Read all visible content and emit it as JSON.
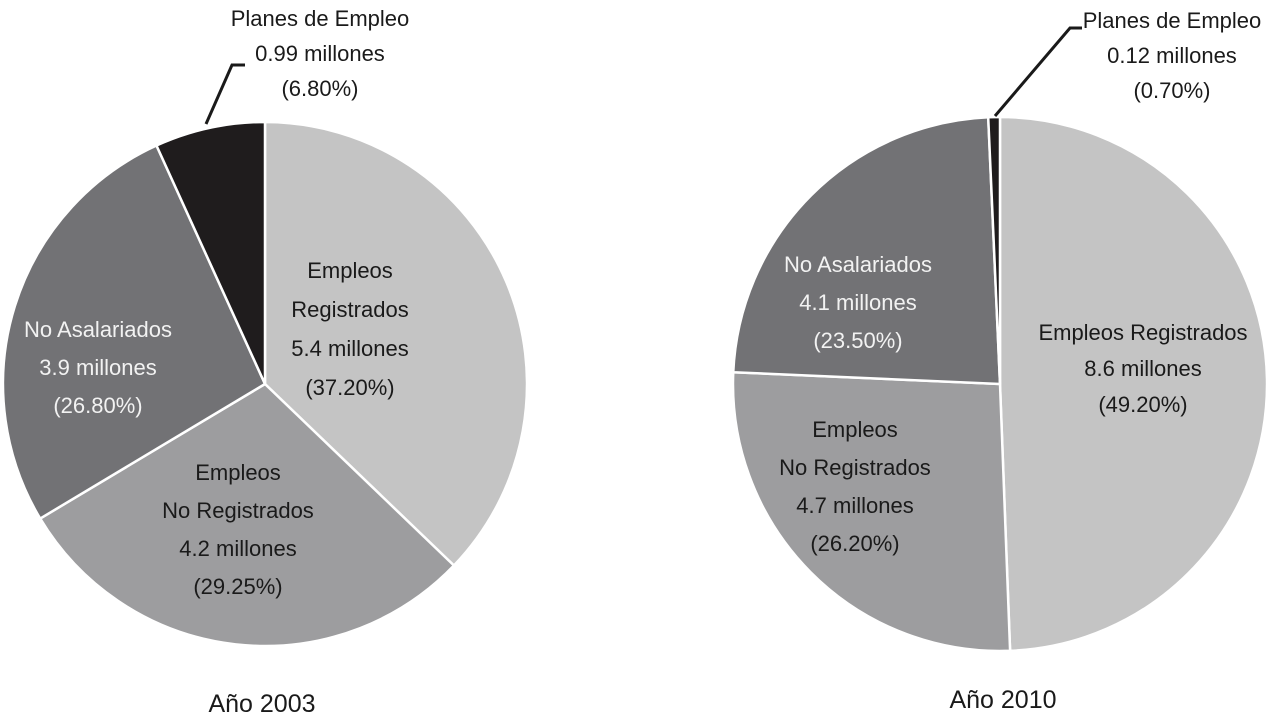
{
  "chart_data": [
    {
      "type": "pie",
      "caption": "Año 2003",
      "slices": [
        {
          "name": "Empleos Registrados",
          "label_lines": [
            "Empleos",
            "Registrados",
            "5.4 millones",
            "(37.20%)"
          ],
          "value": 37.2,
          "millions": 5.4,
          "color": "#c4c4c4",
          "light_text": false
        },
        {
          "name": "Empleos No Registrados",
          "label_lines": [
            "Empleos",
            "No Registrados",
            "4.2 millones",
            "(29.25%)"
          ],
          "value": 29.25,
          "millions": 4.2,
          "color": "#9d9d9f",
          "light_text": false
        },
        {
          "name": "No Asalariados",
          "label_lines": [
            "No Asalariados",
            "3.9 millones",
            "(26.80%)"
          ],
          "value": 26.8,
          "millions": 3.9,
          "color": "#727275",
          "light_text": true
        },
        {
          "name": "Planes de Empleo",
          "label_lines": [
            "Planes de Empleo",
            "0.99 millones",
            "(6.80%)"
          ],
          "value": 6.8,
          "millions": 0.99,
          "color": "#1f1c1d",
          "light_text": false,
          "outside": true
        }
      ]
    },
    {
      "type": "pie",
      "caption": "Año 2010",
      "slices": [
        {
          "name": "Empleos Registrados",
          "label_lines": [
            "Empleos Registrados",
            "8.6 millones",
            "(49.20%)"
          ],
          "value": 49.2,
          "millions": 8.6,
          "color": "#c4c4c4",
          "light_text": false
        },
        {
          "name": "Empleos No Registrados",
          "label_lines": [
            "Empleos",
            "No Registrados",
            "4.7 millones",
            "(26.20%)"
          ],
          "value": 26.2,
          "millions": 4.7,
          "color": "#9d9d9f",
          "light_text": false
        },
        {
          "name": "No Asalariados",
          "label_lines": [
            "No Asalariados",
            "4.1 millones",
            "(23.50%)"
          ],
          "value": 23.5,
          "millions": 4.1,
          "color": "#727275",
          "light_text": true
        },
        {
          "name": "Planes de Empleo",
          "label_lines": [
            "Planes de Empleo",
            "0.12 millones",
            "(0.70%)"
          ],
          "value": 0.7,
          "millions": 0.12,
          "color": "#1f1c1d",
          "light_text": false,
          "outside": true
        }
      ]
    }
  ]
}
